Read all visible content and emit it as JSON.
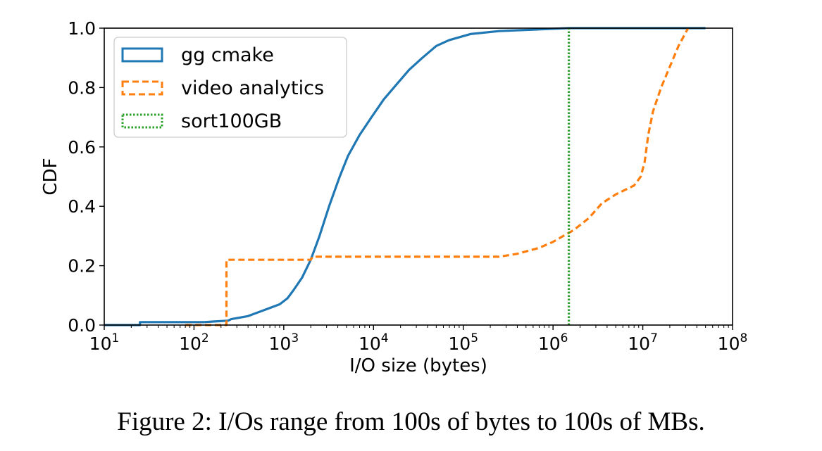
{
  "caption": "Figure 2: I/Os range from 100s of bytes to 100s of MBs.",
  "chart_data": {
    "type": "line",
    "title": "",
    "xlabel": "I/O size (bytes)",
    "ylabel": "CDF",
    "xscale": "log",
    "xlim": [
      10,
      100000000
    ],
    "ylim": [
      0.0,
      1.0
    ],
    "x_ticks": [
      {
        "value": 10,
        "base": "10",
        "exp": "1"
      },
      {
        "value": 100,
        "base": "10",
        "exp": "2"
      },
      {
        "value": 1000,
        "base": "10",
        "exp": "3"
      },
      {
        "value": 10000,
        "base": "10",
        "exp": "4"
      },
      {
        "value": 100000,
        "base": "10",
        "exp": "5"
      },
      {
        "value": 1000000,
        "base": "10",
        "exp": "6"
      },
      {
        "value": 10000000,
        "base": "10",
        "exp": "7"
      },
      {
        "value": 100000000,
        "base": "10",
        "exp": "8"
      }
    ],
    "y_ticks": [
      {
        "value": 0.0,
        "label": "0.0"
      },
      {
        "value": 0.2,
        "label": "0.2"
      },
      {
        "value": 0.4,
        "label": "0.4"
      },
      {
        "value": 0.6,
        "label": "0.6"
      },
      {
        "value": 0.8,
        "label": "0.8"
      },
      {
        "value": 1.0,
        "label": "1.0"
      }
    ],
    "grid": false,
    "legend_position": "top-left",
    "series": [
      {
        "name": "gg cmake",
        "color": "#1f77b4",
        "style": "solid",
        "points": [
          [
            10,
            0.0
          ],
          [
            25,
            0.0
          ],
          [
            25,
            0.01
          ],
          [
            130,
            0.01
          ],
          [
            170,
            0.012
          ],
          [
            240,
            0.015
          ],
          [
            260,
            0.02
          ],
          [
            400,
            0.03
          ],
          [
            600,
            0.05
          ],
          [
            900,
            0.07
          ],
          [
            1100,
            0.09
          ],
          [
            1300,
            0.12
          ],
          [
            1600,
            0.16
          ],
          [
            2000,
            0.22
          ],
          [
            2500,
            0.3
          ],
          [
            3200,
            0.4
          ],
          [
            4200,
            0.5
          ],
          [
            5200,
            0.57
          ],
          [
            7000,
            0.64
          ],
          [
            9500,
            0.7
          ],
          [
            13000,
            0.76
          ],
          [
            18000,
            0.81
          ],
          [
            25000,
            0.86
          ],
          [
            35000,
            0.9
          ],
          [
            50000,
            0.94
          ],
          [
            70000,
            0.96
          ],
          [
            120000,
            0.98
          ],
          [
            250000,
            0.99
          ],
          [
            600000,
            0.995
          ],
          [
            1500000,
            1.0
          ],
          [
            50000000,
            1.0
          ]
        ]
      },
      {
        "name": "video analytics",
        "color": "#ff7f0e",
        "style": "dashed",
        "points": [
          [
            80,
            0.0
          ],
          [
            230,
            0.0
          ],
          [
            230,
            0.22
          ],
          [
            2000,
            0.22
          ],
          [
            2100,
            0.23
          ],
          [
            250000,
            0.23
          ],
          [
            400000,
            0.24
          ],
          [
            700000,
            0.26
          ],
          [
            1000000,
            0.28
          ],
          [
            1300000,
            0.3
          ],
          [
            1700000,
            0.32
          ],
          [
            2500000,
            0.36
          ],
          [
            3500000,
            0.41
          ],
          [
            5000000,
            0.44
          ],
          [
            8000000,
            0.47
          ],
          [
            9500000,
            0.5
          ],
          [
            10500000,
            0.55
          ],
          [
            11500000,
            0.64
          ],
          [
            13000000,
            0.72
          ],
          [
            16000000,
            0.8
          ],
          [
            20000000,
            0.87
          ],
          [
            25000000,
            0.94
          ],
          [
            32000000,
            1.0
          ]
        ]
      },
      {
        "name": "sort100GB",
        "color": "#2ca02c",
        "style": "dotted",
        "points": [
          [
            1500000,
            0.0
          ],
          [
            1500000,
            1.0
          ]
        ]
      }
    ]
  }
}
